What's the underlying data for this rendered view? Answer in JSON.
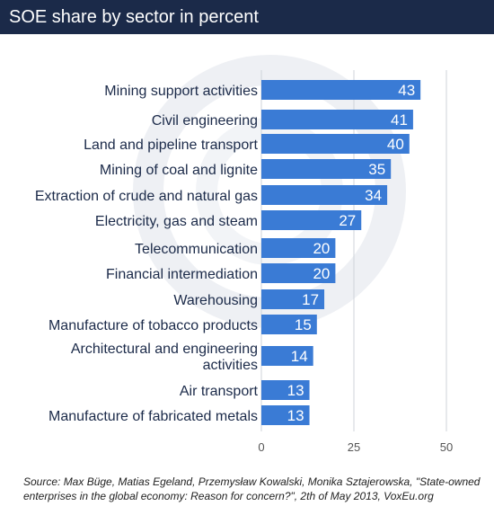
{
  "header": {
    "title": "SOE share by sector in percent"
  },
  "chart_data": {
    "type": "bar",
    "orientation": "horizontal",
    "title": "SOE share by sector in percent",
    "xlabel": "",
    "ylabel": "",
    "xlim": [
      0,
      50
    ],
    "xticks": [
      0,
      25,
      50
    ],
    "grid": true,
    "categories": [
      "Mining support activities",
      "Civil engineering",
      "Land and pipeline transport",
      "Mining of coal and lignite",
      "Extraction of crude and natural gas",
      "Electricity, gas and steam",
      "Telecommunication",
      "Financial intermediation",
      "Warehousing",
      "Manufacture of tobacco products",
      "Architectural and engineering activities",
      "Air transport",
      "Manufacture of fabricated metals"
    ],
    "values": [
      43,
      41,
      40,
      35,
      34,
      27,
      20,
      20,
      17,
      15,
      14,
      13,
      13
    ],
    "bar_color": "#3a7bd5"
  },
  "footer": {
    "source": "Source: Max Büge, Matias Egeland, Przemysław Kowalski, Monika Sztajerowska, \"State-owned enterprises in the global economy: Reason for concern?\", 2th of May 2013, VoxEu.org"
  }
}
